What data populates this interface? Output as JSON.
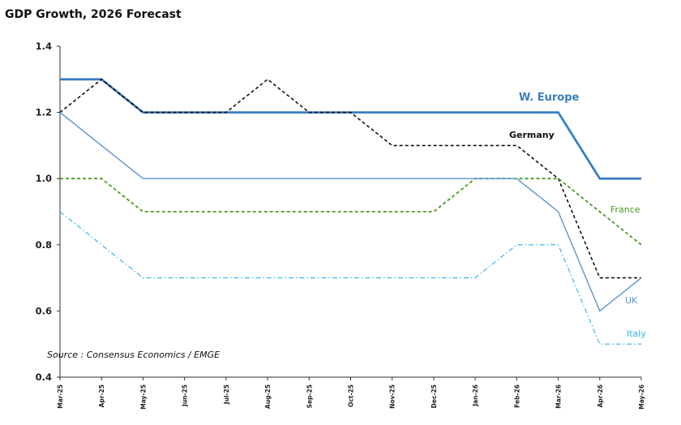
{
  "chart_data": {
    "type": "line",
    "title": "GDP Growth, 2026 Forecast",
    "source": "Source : Consensus Economics / EMGE",
    "categories": [
      "Mar-25",
      "Apr-25",
      "May-25",
      "Jun-25",
      "Jul-25",
      "Aug-25",
      "Sep-25",
      "Oct-25",
      "Nov-25",
      "Dec-25",
      "Jan-26",
      "Feb-26",
      "Mar-26",
      "Apr-26",
      "May-26"
    ],
    "ylim": [
      0.4,
      1.4
    ],
    "yticks": [
      "0.4",
      "0.6",
      "0.8",
      "1.0",
      "1.2",
      "1.4"
    ],
    "grid": false,
    "series": [
      {
        "name": "W. Europe",
        "color": "#3a7fc0",
        "dash": "solid",
        "width": 2.8,
        "values": [
          1.3,
          1.3,
          1.2,
          1.2,
          1.2,
          1.2,
          1.2,
          1.2,
          1.2,
          1.2,
          1.2,
          1.2,
          1.2,
          1.0,
          1.0
        ]
      },
      {
        "name": "Germany",
        "color": "#111111",
        "dash": "dashed",
        "width": 1.6,
        "values": [
          1.2,
          1.3,
          1.2,
          1.2,
          1.2,
          1.3,
          1.2,
          1.2,
          1.1,
          1.1,
          1.1,
          1.1,
          1.0,
          0.7,
          0.7
        ]
      },
      {
        "name": "France",
        "color": "#4a9a22",
        "dash": "dashed",
        "width": 1.8,
        "values": [
          1.0,
          1.0,
          0.9,
          0.9,
          0.9,
          0.9,
          0.9,
          0.9,
          0.9,
          0.9,
          1.0,
          1.0,
          1.0,
          0.9,
          0.8
        ]
      },
      {
        "name": "UK",
        "color": "#5b93cf",
        "dash": "solid",
        "width": 1.4,
        "values": [
          1.2,
          1.1,
          1.0,
          1.0,
          1.0,
          1.0,
          1.0,
          1.0,
          1.0,
          1.0,
          1.0,
          1.0,
          0.9,
          0.6,
          0.7
        ]
      },
      {
        "name": "Italy",
        "color": "#2bb0e6",
        "dash": "dashdot",
        "width": 1.1,
        "values": [
          0.9,
          0.8,
          0.7,
          0.7,
          0.7,
          0.7,
          0.7,
          0.7,
          0.7,
          0.7,
          0.7,
          0.8,
          0.8,
          0.5,
          0.5
        ]
      }
    ]
  }
}
